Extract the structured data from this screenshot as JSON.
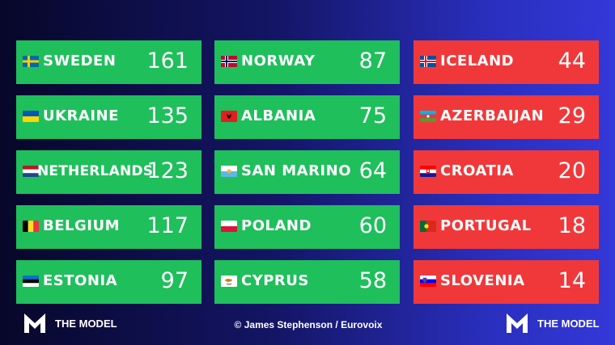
{
  "columns": [
    {
      "status": "qualified",
      "color": "#1fbf5c",
      "entries": [
        {
          "country": "SWEDEN",
          "points": "161",
          "flag": "sweden-flag-icon"
        },
        {
          "country": "UKRAINE",
          "points": "135",
          "flag": "ukraine-flag-icon"
        },
        {
          "country": "NETHERLANDS",
          "points": "123",
          "flag": "netherlands-flag-icon"
        },
        {
          "country": "BELGIUM",
          "points": "117",
          "flag": "belgium-flag-icon"
        },
        {
          "country": "ESTONIA",
          "points": "97",
          "flag": "estonia-flag-icon"
        }
      ]
    },
    {
      "status": "qualified",
      "color": "#1fbf5c",
      "entries": [
        {
          "country": "NORWAY",
          "points": "87",
          "flag": "norway-flag-icon"
        },
        {
          "country": "ALBANIA",
          "points": "75",
          "flag": "albania-flag-icon"
        },
        {
          "country": "SAN MARINO",
          "points": "64",
          "flag": "san-marino-flag-icon"
        },
        {
          "country": "POLAND",
          "points": "60",
          "flag": "poland-flag-icon"
        },
        {
          "country": "CYPRUS",
          "points": "58",
          "flag": "cyprus-flag-icon"
        }
      ]
    },
    {
      "status": "eliminated",
      "color": "#f0383a",
      "entries": [
        {
          "country": "ICELAND",
          "points": "44",
          "flag": "iceland-flag-icon"
        },
        {
          "country": "AZERBAIJAN",
          "points": "29",
          "flag": "azerbaijan-flag-icon"
        },
        {
          "country": "CROATIA",
          "points": "20",
          "flag": "croatia-flag-icon"
        },
        {
          "country": "PORTUGAL",
          "points": "18",
          "flag": "portugal-flag-icon"
        },
        {
          "country": "SLOVENIA",
          "points": "14",
          "flag": "slovenia-flag-icon"
        }
      ]
    }
  ],
  "footer": {
    "brand_left": "THE MODEL",
    "brand_right": "THE MODEL",
    "credit": "© James Stephenson / Eurovoix"
  }
}
